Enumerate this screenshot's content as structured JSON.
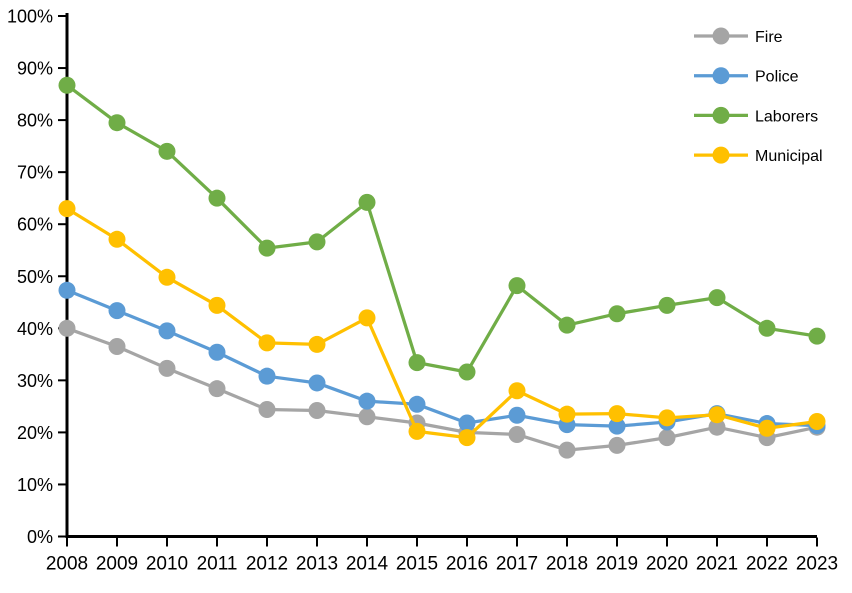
{
  "chart_data": {
    "type": "line",
    "title": "",
    "xlabel": "",
    "ylabel": "",
    "x_tick_labels": [
      "2008",
      "2009",
      "2010",
      "2011",
      "2012",
      "2013",
      "2014",
      "2015",
      "2016",
      "2017",
      "2018",
      "2019",
      "2020",
      "2021",
      "2022",
      "2023"
    ],
    "y_tick_labels": [
      "0%",
      "10%",
      "20%",
      "30%",
      "40%",
      "50%",
      "60%",
      "70%",
      "80%",
      "90%",
      "100%"
    ],
    "ylim": [
      0,
      100
    ],
    "ytick_step": 10,
    "grid": false,
    "legend_position": "top-right",
    "background_color": "#FFFFFF",
    "axis_color": "#000000",
    "marker": "circle",
    "series": [
      {
        "name": "Fire",
        "color": "#A5A5A5",
        "values": [
          40.0,
          36.5,
          32.3,
          28.4,
          24.4,
          24.2,
          23.0,
          21.8,
          20.0,
          19.6,
          16.6,
          17.5,
          19.0,
          21.0,
          19.0,
          21.0
        ]
      },
      {
        "name": "Police",
        "color": "#5B9BD5",
        "values": [
          47.3,
          43.4,
          39.5,
          35.4,
          30.8,
          29.5,
          26.0,
          25.4,
          21.8,
          23.3,
          21.5,
          21.2,
          22.0,
          23.6,
          21.7,
          21.3
        ]
      },
      {
        "name": "Laborers",
        "color": "#70AD47",
        "values": [
          86.7,
          79.5,
          74.0,
          65.0,
          55.4,
          56.6,
          64.2,
          33.4,
          31.6,
          48.2,
          40.6,
          42.8,
          44.4,
          45.9,
          40.0,
          38.5
        ]
      },
      {
        "name": "Municipal",
        "color": "#FFC000",
        "values": [
          63.0,
          57.1,
          49.8,
          44.4,
          37.2,
          36.9,
          42.0,
          20.2,
          19.0,
          28.0,
          23.5,
          23.6,
          22.8,
          23.4,
          20.8,
          22.1
        ]
      }
    ]
  }
}
